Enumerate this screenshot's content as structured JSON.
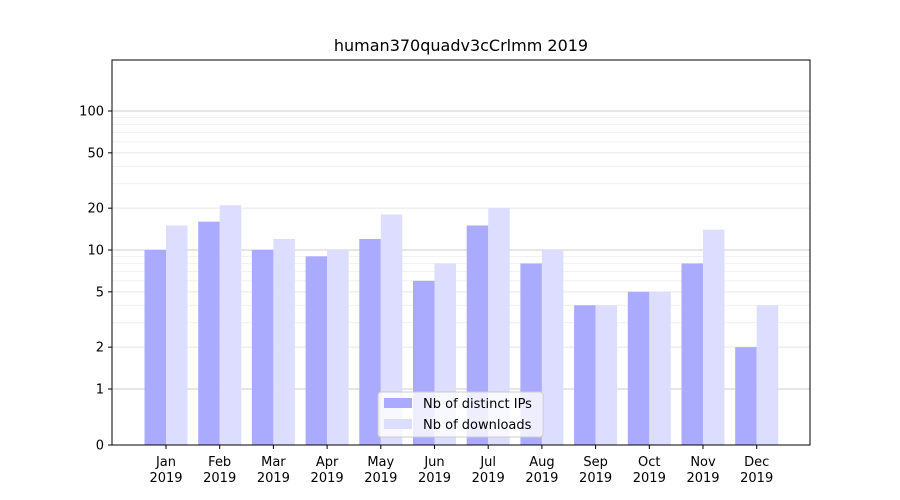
{
  "chart_data": {
    "type": "bar",
    "title": "human370quadv3cCrlmm 2019",
    "xlabel": "",
    "ylabel": "",
    "yscale": "symlog",
    "ylim": [
      0,
      110
    ],
    "y_ticks": [
      0,
      1,
      2,
      5,
      10,
      20,
      50,
      100
    ],
    "categories": [
      [
        "Jan",
        "2019"
      ],
      [
        "Feb",
        "2019"
      ],
      [
        "Mar",
        "2019"
      ],
      [
        "Apr",
        "2019"
      ],
      [
        "May",
        "2019"
      ],
      [
        "Jun",
        "2019"
      ],
      [
        "Jul",
        "2019"
      ],
      [
        "Aug",
        "2019"
      ],
      [
        "Sep",
        "2019"
      ],
      [
        "Oct",
        "2019"
      ],
      [
        "Nov",
        "2019"
      ],
      [
        "Dec",
        "2019"
      ]
    ],
    "series": [
      {
        "name": "Nb of distinct IPs",
        "color": "#aaaaff",
        "values": [
          10,
          16,
          10,
          9,
          12,
          6,
          15,
          8,
          4,
          5,
          8,
          2
        ]
      },
      {
        "name": "Nb of downloads",
        "color": "#ddddff",
        "values": [
          15,
          21,
          12,
          10,
          18,
          8,
          20,
          10,
          4,
          5,
          14,
          4
        ]
      }
    ],
    "grid": true,
    "legend_position": "bottom-center"
  }
}
